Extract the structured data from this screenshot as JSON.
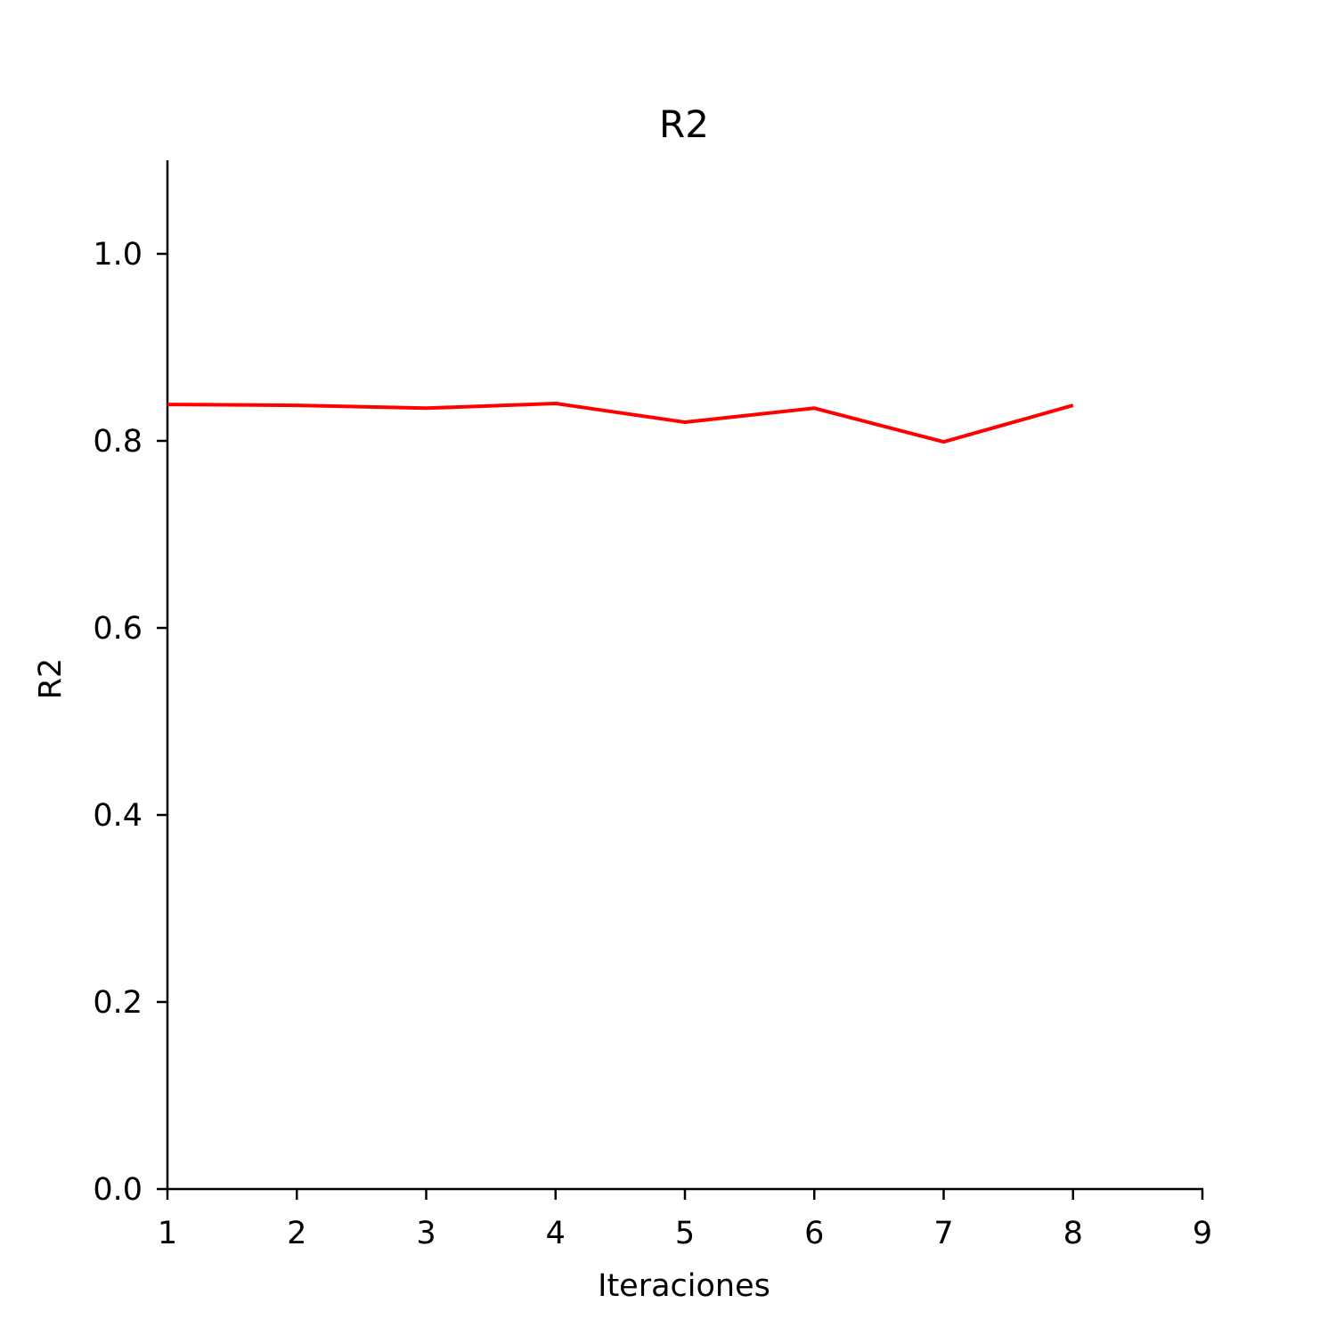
{
  "chart_data": {
    "type": "line",
    "title": "R2",
    "xlabel": "Iteraciones",
    "ylabel": "R2",
    "xlim": [
      1,
      9
    ],
    "ylim": [
      0,
      1.1
    ],
    "x_ticks": [
      1,
      2,
      3,
      4,
      5,
      6,
      7,
      8,
      9
    ],
    "x_tick_labels": [
      "1",
      "2",
      "3",
      "4",
      "5",
      "6",
      "7",
      "8",
      "9"
    ],
    "y_ticks": [
      0.0,
      0.2,
      0.4,
      0.6,
      0.8,
      1.0
    ],
    "y_tick_labels": [
      "0.0",
      "0.2",
      "0.4",
      "0.6",
      "0.8",
      "1.0"
    ],
    "grid": false,
    "series": [
      {
        "color": "#ff0000",
        "x": [
          1,
          2,
          3,
          4,
          5,
          6,
          7,
          8
        ],
        "y": [
          0.839,
          0.838,
          0.835,
          0.84,
          0.82,
          0.835,
          0.799,
          0.838
        ]
      }
    ]
  }
}
